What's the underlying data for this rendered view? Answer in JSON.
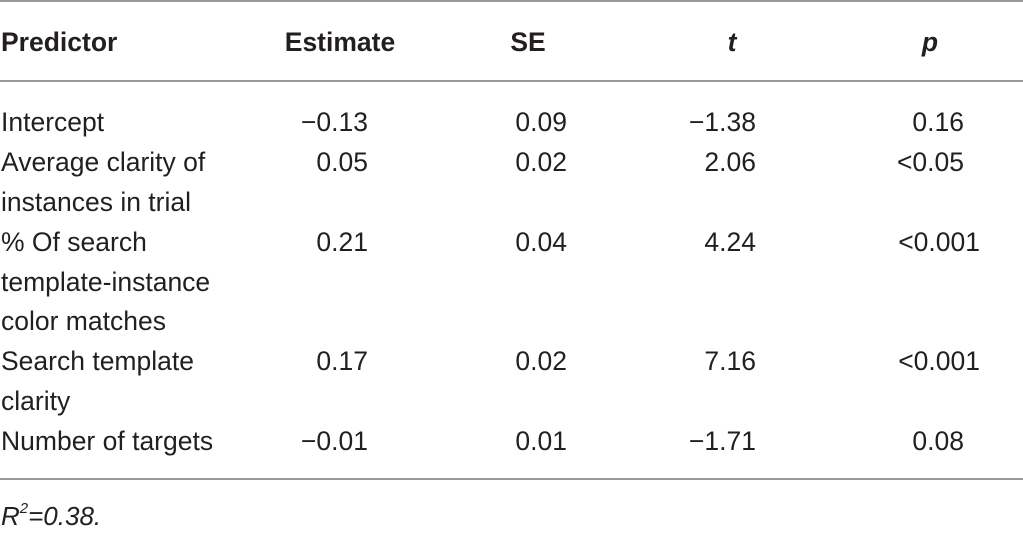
{
  "table": {
    "headers": {
      "predictor": "Predictor",
      "estimate": "Estimate",
      "se": "SE",
      "t": "t",
      "p": "p"
    },
    "rows": [
      {
        "predictor_lines": [
          "Intercept"
        ],
        "estimate": "−0.13",
        "se": "0.09",
        "t": "−1.38",
        "p": "0.16"
      },
      {
        "predictor_lines": [
          "Average clarity of",
          "instances in trial"
        ],
        "estimate": "0.05",
        "se": "0.02",
        "t": "2.06",
        "p": "<0.05"
      },
      {
        "predictor_lines": [
          "% Of search",
          "template-instance",
          "color matches"
        ],
        "estimate": "0.21",
        "se": "0.04",
        "t": "4.24",
        "p": "<0.001"
      },
      {
        "predictor_lines": [
          "Search template",
          "clarity"
        ],
        "estimate": "0.17",
        "se": "0.02",
        "t": "7.16",
        "p": "<0.001"
      },
      {
        "predictor_lines": [
          "Number of targets"
        ],
        "estimate": "−0.01",
        "se": "0.01",
        "t": "−1.71",
        "p": "0.08"
      }
    ]
  },
  "footnote": {
    "symbol": "R",
    "superscript": "2",
    "text": "=0.38."
  }
}
